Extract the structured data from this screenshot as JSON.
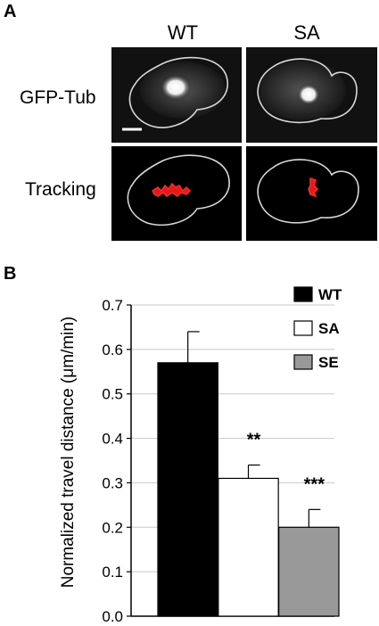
{
  "panel_a": {
    "letter": "A",
    "columns": [
      "WT",
      "SA"
    ],
    "rows": [
      "GFP-Tub",
      "Tracking"
    ]
  },
  "panel_b": {
    "letter": "B"
  },
  "chart_data": {
    "type": "bar",
    "categories": [
      "WT",
      "SA",
      "SE"
    ],
    "values": [
      0.57,
      0.31,
      0.2
    ],
    "errors": [
      0.07,
      0.03,
      0.04
    ],
    "bar_colors": [
      "#000000",
      "#ffffff",
      "#999999"
    ],
    "significance": [
      "",
      "**",
      "***"
    ],
    "ylabel": "Normalized travel distance (μm/min)",
    "xlabel": "",
    "ylim": [
      0,
      0.7
    ],
    "yticks": [
      "0.0",
      "0.1",
      "0.2",
      "0.3",
      "0.4",
      "0.5",
      "0.6",
      "0.7"
    ],
    "grid": true,
    "legend": {
      "placement": "top-right",
      "entries": [
        "WT",
        "SA",
        "SE"
      ]
    }
  }
}
